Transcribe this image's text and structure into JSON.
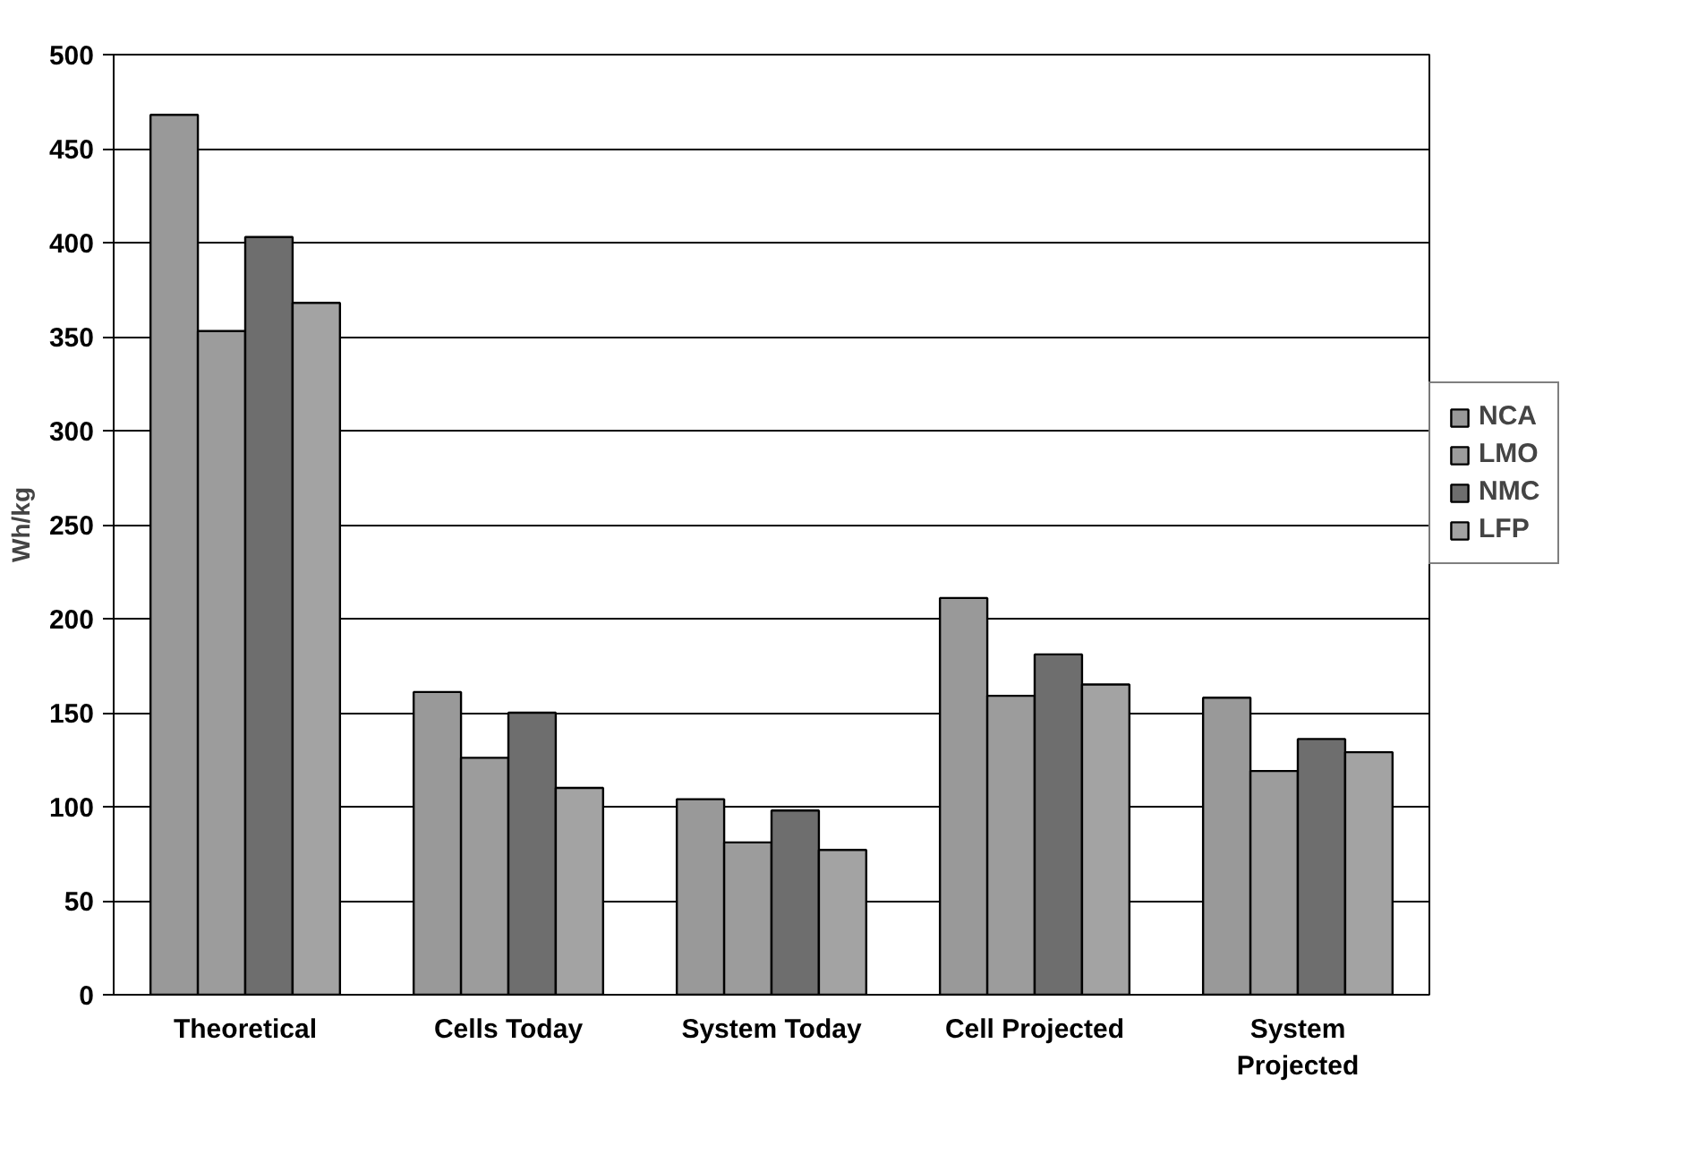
{
  "chart_data": {
    "type": "bar",
    "ylabel": "Wh/kg",
    "categories": [
      "Theoretical",
      "Cells Today",
      "System Today",
      "Cell Projected",
      "System Projected"
    ],
    "series": [
      {
        "name": "NCA",
        "color": "#999999",
        "values": [
          468,
          161,
          104,
          211,
          158
        ]
      },
      {
        "name": "LMO",
        "color": "#9c9c9c",
        "values": [
          353,
          126,
          81,
          159,
          119
        ]
      },
      {
        "name": "NMC",
        "color": "#6e6e6e",
        "values": [
          403,
          150,
          98,
          181,
          136
        ]
      },
      {
        "name": "LFP",
        "color": "#a3a3a3",
        "values": [
          368,
          110,
          77,
          165,
          129
        ]
      }
    ],
    "ylim": [
      0,
      500
    ],
    "yticks": [
      0,
      50,
      100,
      150,
      200,
      250,
      300,
      350,
      400,
      450,
      500
    ],
    "grid": "y",
    "legend": "right"
  }
}
